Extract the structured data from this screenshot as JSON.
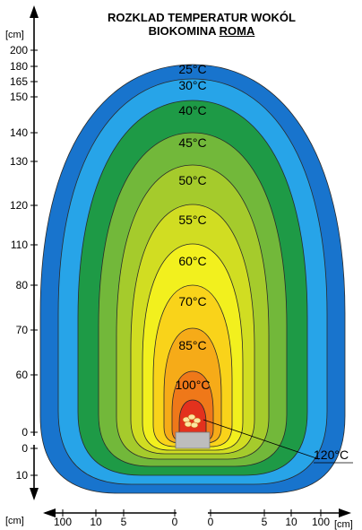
{
  "title": {
    "line1": "ROZKLAD TEMPERATUR WOKÓL",
    "line2_prefix": "BIOKOMINA ",
    "line2_name": "ROMA"
  },
  "colors": {
    "zone_25": "#1874cd",
    "zone_30": "#27a4e8",
    "zone_40": "#1e9a46",
    "zone_45": "#72b83a",
    "zone_50": "#a5cb2c",
    "zone_55": "#d1dd22",
    "zone_60": "#f2f01e",
    "zone_70": "#f9d31a",
    "zone_85": "#f6ab18",
    "zone_100": "#ef7819",
    "zone_120": "#e3311d",
    "burner": "#bdbdbd",
    "axis": "#000000"
  },
  "zones": [
    {
      "label": "25°C",
      "value": "25"
    },
    {
      "label": "30°C",
      "value": "30"
    },
    {
      "label": "40°C",
      "value": "40"
    },
    {
      "label": "45°C",
      "value": "45"
    },
    {
      "label": "50°C",
      "value": "50"
    },
    {
      "label": "55°C",
      "value": "55"
    },
    {
      "label": "60°C",
      "value": "60"
    },
    {
      "label": "70°C",
      "value": "70"
    },
    {
      "label": "85°C",
      "value": "85"
    },
    {
      "label": "100°C",
      "value": "100"
    }
  ],
  "callout_label": "120°C",
  "y_axis": {
    "unit": "[cm]",
    "ticks_up": [
      "200",
      "180",
      "165",
      "150",
      "140",
      "130",
      "120",
      "110",
      "80",
      "70",
      "60",
      "0"
    ],
    "ticks_down": [
      "0",
      "10"
    ]
  },
  "x_axis": {
    "unit_left": "[cm]",
    "unit_right": "[cm]",
    "ticks_left": [
      "100",
      "10",
      "5",
      "0"
    ],
    "ticks_right": [
      "0",
      "5",
      "10",
      "100"
    ]
  }
}
